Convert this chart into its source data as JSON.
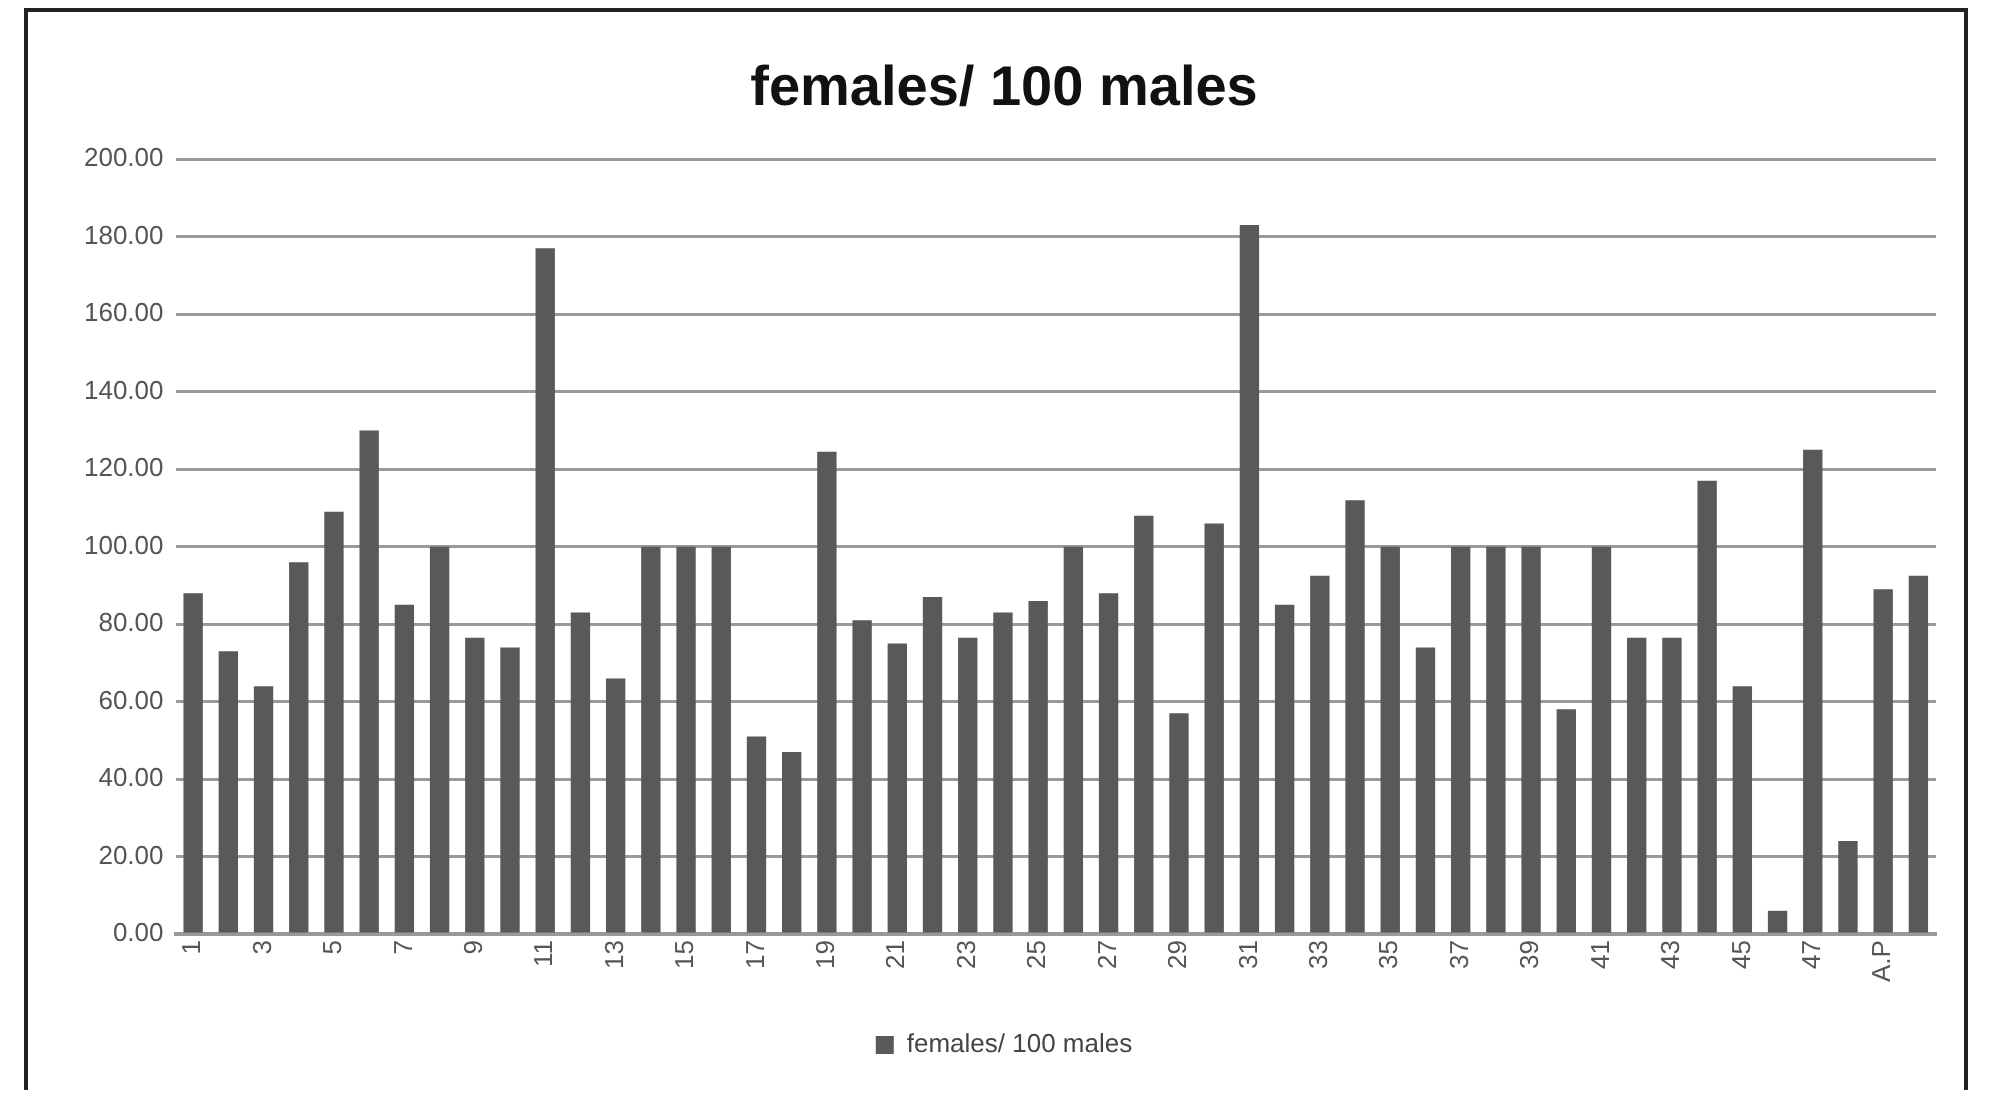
{
  "chart_data": {
    "type": "bar",
    "title": "females/ 100 males",
    "categories": [
      "1",
      null,
      "3",
      null,
      "5",
      null,
      "7",
      null,
      "9",
      null,
      "11",
      null,
      "13",
      null,
      "15",
      null,
      "17",
      null,
      "19",
      null,
      "21",
      null,
      "23",
      null,
      "25",
      null,
      "27",
      null,
      "29",
      null,
      "31",
      null,
      "33",
      null,
      "35",
      null,
      "37",
      null,
      "39",
      null,
      "41",
      null,
      "43",
      null,
      "45",
      null,
      "47",
      null,
      "A.P",
      null
    ],
    "series": [
      {
        "name": "females/ 100 males",
        "color": "#595959",
        "values": [
          88,
          73,
          64,
          96,
          109,
          130,
          85,
          100,
          76.5,
          74,
          177,
          83,
          66,
          100,
          100,
          100,
          51,
          47,
          124.5,
          81,
          75,
          87,
          76.5,
          83,
          86,
          100,
          88,
          108,
          57,
          106,
          183,
          85,
          92.5,
          112,
          100,
          74,
          100,
          100,
          100,
          58,
          100,
          76.5,
          76.5,
          117,
          64,
          6,
          125,
          24,
          89,
          92.5
        ]
      }
    ],
    "ylim": [
      0,
      200
    ],
    "yticks": [
      {
        "value": 0,
        "label": "0.00"
      },
      {
        "value": 20,
        "label": "20.00"
      },
      {
        "value": 40,
        "label": "40.00"
      },
      {
        "value": 60,
        "label": "60.00"
      },
      {
        "value": 80,
        "label": "80.00"
      },
      {
        "value": 100,
        "label": "100.00"
      },
      {
        "value": 120,
        "label": "120.00"
      },
      {
        "value": 140,
        "label": "140.00"
      },
      {
        "value": 160,
        "label": "160.00"
      },
      {
        "value": 180,
        "label": "180.00"
      },
      {
        "value": 200,
        "label": "200.00"
      }
    ],
    "grid": "y",
    "legend": "bottom"
  }
}
